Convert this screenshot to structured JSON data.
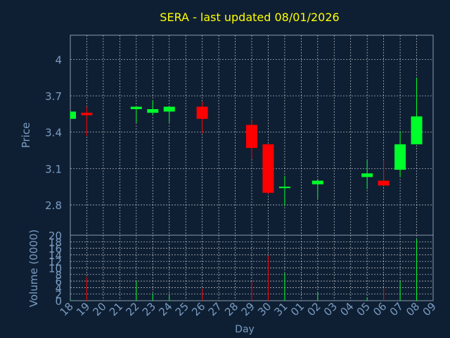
{
  "chart_data": {
    "type": "candlestick",
    "title": "SERA - last updated 08/01/2026",
    "xlabel": "Day",
    "price_panel": {
      "ylabel": "Price",
      "ylim": [
        2.55,
        4.2
      ],
      "yticks": [
        2.8,
        3.1,
        3.4,
        3.7,
        4
      ],
      "ytick_labels": [
        "2.8",
        "3.1",
        "3.4",
        "3.7",
        "4"
      ]
    },
    "volume_panel": {
      "ylabel": "Volume (0000)",
      "ylim": [
        0,
        20
      ],
      "yticks": [
        0,
        2,
        4,
        6,
        8,
        10,
        12,
        14,
        16,
        18,
        20
      ],
      "ytick_labels": [
        "0",
        "2",
        "4",
        "6",
        "8",
        "10",
        "12",
        "14",
        "16",
        "18",
        "20"
      ]
    },
    "x_labels": [
      "18",
      "19",
      "20",
      "21",
      "22",
      "23",
      "24",
      "25",
      "26",
      "27",
      "28",
      "29",
      "30",
      "31",
      "01",
      "02",
      "03",
      "04",
      "05",
      "06",
      "07",
      "08",
      "09"
    ],
    "candles": [
      {
        "day": "18",
        "open": 3.51,
        "high": 3.57,
        "low": 3.51,
        "close": 3.57,
        "volume": 0.3
      },
      {
        "day": "19",
        "open": 3.56,
        "high": 3.61,
        "low": 3.37,
        "close": 3.54,
        "volume": 7.2
      },
      {
        "day": "22",
        "open": 3.59,
        "high": 3.61,
        "low": 3.48,
        "close": 3.61,
        "volume": 6.0
      },
      {
        "day": "23",
        "open": 3.56,
        "high": 3.66,
        "low": 3.54,
        "close": 3.59,
        "volume": 2.2
      },
      {
        "day": "24",
        "open": 3.57,
        "high": 3.61,
        "low": 3.48,
        "close": 3.61,
        "volume": 1.6
      },
      {
        "day": "26",
        "open": 3.61,
        "high": 3.65,
        "low": 3.39,
        "close": 3.51,
        "volume": 3.6
      },
      {
        "day": "29",
        "open": 3.46,
        "high": 3.5,
        "low": 3.18,
        "close": 3.27,
        "volume": 5.8
      },
      {
        "day": "30",
        "open": 3.3,
        "high": 3.3,
        "low": 2.89,
        "close": 2.9,
        "volume": 13.8
      },
      {
        "day": "31",
        "open": 2.94,
        "high": 3.04,
        "low": 2.79,
        "close": 2.95,
        "volume": 8.4
      },
      {
        "day": "02",
        "open": 2.97,
        "high": 3.01,
        "low": 2.85,
        "close": 3.0,
        "volume": 2.5
      },
      {
        "day": "05",
        "open": 3.03,
        "high": 3.17,
        "low": 2.93,
        "close": 3.06,
        "volume": 1.0
      },
      {
        "day": "06",
        "open": 3.0,
        "high": 3.17,
        "low": 2.95,
        "close": 2.96,
        "volume": 3.8
      },
      {
        "day": "07",
        "open": 3.09,
        "high": 3.41,
        "low": 3.03,
        "close": 3.3,
        "volume": 6.0
      },
      {
        "day": "08",
        "open": 3.3,
        "high": 3.85,
        "low": 3.3,
        "close": 3.53,
        "volume": 18.8
      }
    ],
    "colors": {
      "background": "#0f1f33",
      "up": "#00ff2a",
      "down": "#ff0000",
      "grid": "#ffffff",
      "title": "#ffff00",
      "axis_text": "#7a9cc2",
      "frame": "#8a9aab"
    },
    "grid": true
  }
}
